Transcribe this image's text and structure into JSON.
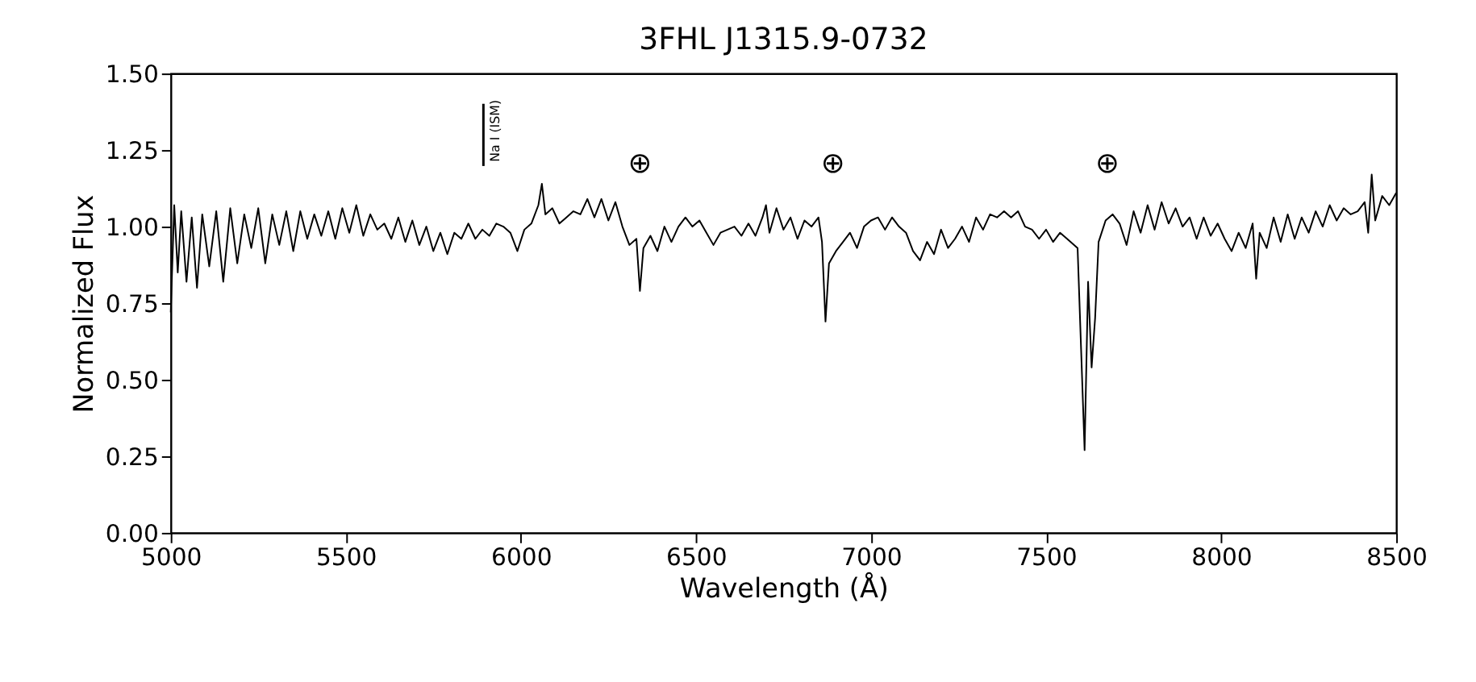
{
  "chart_data": {
    "type": "line",
    "title": "3FHL J1315.9-0732",
    "xlabel": "Wavelength (Å)",
    "ylabel": "Normalized Flux",
    "xlim": [
      5000,
      8500
    ],
    "xticks": [
      5000,
      5500,
      6000,
      6500,
      7000,
      7500,
      8000,
      8500
    ],
    "ylim": [
      0,
      1.5
    ],
    "yticks": [
      {
        "value": 0,
        "label": "0.00"
      },
      {
        "value": 0.25,
        "label": "0.25"
      },
      {
        "value": 0.5,
        "label": "0.50"
      },
      {
        "value": 0.75,
        "label": "0.75"
      },
      {
        "value": 1,
        "label": "1.00"
      },
      {
        "value": 1.25,
        "label": "1.25"
      },
      {
        "value": 1.5,
        "label": "1.50"
      }
    ],
    "grid": false,
    "marker": "none",
    "line_style": "solid",
    "x": [
      5000,
      5010,
      5020,
      5030,
      5045,
      5060,
      5075,
      5090,
      5110,
      5130,
      5150,
      5170,
      5190,
      5210,
      5230,
      5250,
      5270,
      5290,
      5310,
      5330,
      5350,
      5370,
      5390,
      5410,
      5430,
      5450,
      5470,
      5490,
      5510,
      5530,
      5550,
      5570,
      5590,
      5610,
      5630,
      5650,
      5670,
      5690,
      5710,
      5730,
      5750,
      5770,
      5790,
      5810,
      5830,
      5850,
      5870,
      5890,
      5910,
      5930,
      5950,
      5970,
      5990,
      6010,
      6030,
      6050,
      6060,
      6070,
      6090,
      6110,
      6130,
      6150,
      6170,
      6190,
      6210,
      6230,
      6250,
      6270,
      6290,
      6310,
      6330,
      6340,
      6350,
      6370,
      6390,
      6410,
      6430,
      6450,
      6470,
      6490,
      6510,
      6530,
      6550,
      6570,
      6590,
      6610,
      6630,
      6650,
      6670,
      6690,
      6700,
      6710,
      6730,
      6750,
      6770,
      6790,
      6810,
      6830,
      6850,
      6860,
      6870,
      6880,
      6900,
      6920,
      6940,
      6960,
      6980,
      7000,
      7020,
      7040,
      7060,
      7080,
      7100,
      7120,
      7140,
      7160,
      7180,
      7200,
      7220,
      7240,
      7260,
      7280,
      7300,
      7320,
      7340,
      7360,
      7380,
      7400,
      7420,
      7440,
      7460,
      7480,
      7500,
      7520,
      7540,
      7560,
      7590,
      7600,
      7610,
      7620,
      7630,
      7640,
      7650,
      7670,
      7690,
      7710,
      7730,
      7750,
      7770,
      7790,
      7810,
      7830,
      7850,
      7870,
      7890,
      7910,
      7930,
      7950,
      7970,
      7990,
      8010,
      8030,
      8050,
      8070,
      8090,
      8100,
      8110,
      8130,
      8150,
      8170,
      8190,
      8210,
      8230,
      8250,
      8270,
      8290,
      8310,
      8330,
      8350,
      8370,
      8390,
      8410,
      8420,
      8430,
      8440,
      8460,
      8480,
      8500
    ],
    "series": [
      {
        "color": "#000000",
        "values": [
          0.72,
          1.07,
          0.85,
          1.05,
          0.82,
          1.03,
          0.8,
          1.04,
          0.87,
          1.05,
          0.82,
          1.06,
          0.88,
          1.04,
          0.93,
          1.06,
          0.88,
          1.04,
          0.94,
          1.05,
          0.92,
          1.05,
          0.96,
          1.04,
          0.97,
          1.05,
          0.96,
          1.06,
          0.98,
          1.07,
          0.97,
          1.04,
          0.99,
          1.01,
          0.96,
          1.03,
          0.95,
          1.02,
          0.94,
          1.0,
          0.92,
          0.98,
          0.91,
          0.98,
          0.96,
          1.01,
          0.96,
          0.99,
          0.97,
          1.01,
          1.0,
          0.98,
          0.92,
          0.99,
          1.01,
          1.07,
          1.14,
          1.04,
          1.06,
          1.01,
          1.03,
          1.05,
          1.04,
          1.09,
          1.03,
          1.09,
          1.02,
          1.08,
          1.0,
          0.94,
          0.96,
          0.79,
          0.93,
          0.97,
          0.92,
          1.0,
          0.95,
          1.0,
          1.03,
          1.0,
          1.02,
          0.98,
          0.94,
          0.98,
          0.99,
          1.0,
          0.97,
          1.01,
          0.97,
          1.03,
          1.07,
          0.98,
          1.06,
          0.99,
          1.03,
          0.96,
          1.02,
          1.0,
          1.03,
          0.95,
          0.69,
          0.88,
          0.92,
          0.95,
          0.98,
          0.93,
          1.0,
          1.02,
          1.03,
          0.99,
          1.03,
          1.0,
          0.98,
          0.92,
          0.89,
          0.95,
          0.91,
          0.99,
          0.93,
          0.96,
          1.0,
          0.95,
          1.03,
          0.99,
          1.04,
          1.03,
          1.05,
          1.03,
          1.05,
          1.0,
          0.99,
          0.96,
          0.99,
          0.95,
          0.98,
          0.96,
          0.93,
          0.6,
          0.27,
          0.82,
          0.54,
          0.7,
          0.95,
          1.02,
          1.04,
          1.01,
          0.94,
          1.05,
          0.98,
          1.07,
          0.99,
          1.08,
          1.01,
          1.06,
          1.0,
          1.03,
          0.96,
          1.03,
          0.97,
          1.01,
          0.96,
          0.92,
          0.98,
          0.93,
          1.01,
          0.83,
          0.98,
          0.93,
          1.03,
          0.95,
          1.04,
          0.96,
          1.03,
          0.98,
          1.05,
          1.0,
          1.07,
          1.02,
          1.06,
          1.04,
          1.05,
          1.08,
          0.98,
          1.17,
          1.02,
          1.1,
          1.07,
          1.11
        ]
      }
    ],
    "ref_lines": [
      {
        "axis": "x",
        "value": 5893,
        "label": "Na I (ISM)",
        "color": "#000000"
      }
    ],
    "annotations": [
      "⊕",
      "⊕",
      "⊕"
    ]
  }
}
